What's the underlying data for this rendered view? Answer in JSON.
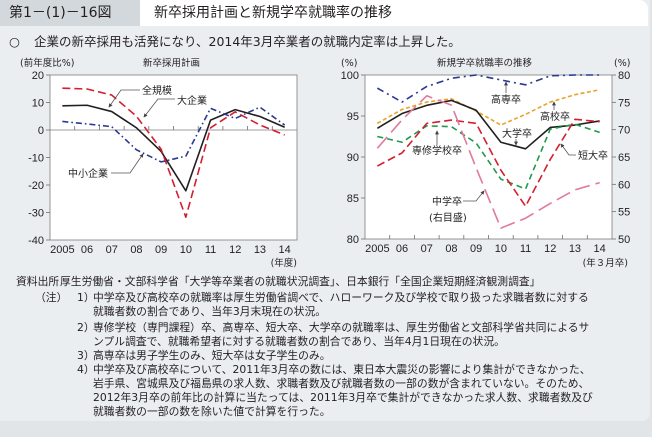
{
  "header": {
    "figure_number": "第1－(1)－16図",
    "title": "新卒採用計画と新規学卒就職率の推移"
  },
  "summary": {
    "bullet": "○",
    "text": "企業の新卒採用も活発になり、2014年3月卒業者の就職内定率は上昇した。"
  },
  "chart_data": [
    {
      "type": "line",
      "title": "新卒採用計画",
      "ylabel": "(前年度比%)",
      "xlabel": "(年度)",
      "categories": [
        "2005",
        "06",
        "07",
        "08",
        "09",
        "10",
        "11",
        "12",
        "13",
        "14"
      ],
      "ylim": [
        -40,
        20
      ],
      "yticks": [
        20,
        10,
        0,
        -10,
        -20,
        -30,
        -40
      ],
      "grid": false,
      "series": [
        {
          "name": "全規模",
          "color": "#231f20",
          "values": [
            8.8,
            9.0,
            6.7,
            0.8,
            -7.8,
            -22.1,
            3.6,
            7.4,
            4.9,
            1.0
          ]
        },
        {
          "name": "大企業",
          "color": "#d31f2e",
          "values": [
            15.2,
            14.9,
            12.7,
            5.0,
            -7.0,
            -31.7,
            0.8,
            6.6,
            1.8,
            -1.8
          ]
        },
        {
          "name": "中小企業",
          "color": "#2b3990",
          "values": [
            3.1,
            2.2,
            1.2,
            -7.2,
            -11.6,
            -9.5,
            7.9,
            4.2,
            8.3,
            1.8
          ]
        }
      ]
    },
    {
      "type": "line",
      "title": "新規学卒就職率の推移",
      "ylabel": "(%)",
      "y2label": "(%)",
      "xlabel": "(年３月卒)",
      "categories": [
        "2005",
        "06",
        "07",
        "08",
        "09",
        "10",
        "11",
        "12",
        "13",
        "14"
      ],
      "ylim": [
        80,
        100
      ],
      "yticks": [
        100,
        95,
        90,
        85,
        80
      ],
      "y2lim": [
        50,
        80
      ],
      "y2ticks": [
        80,
        75,
        70,
        65,
        60,
        55,
        50
      ],
      "grid": false,
      "series": [
        {
          "name": "高専卒",
          "color": "#2b3990",
          "right_axis": false,
          "values": [
            98.4,
            96.7,
            98.6,
            99.6,
            100.0,
            99.4,
            98.8,
            99.9,
            100.0,
            100.0
          ]
        },
        {
          "name": "高校卒",
          "color": "#e8a328",
          "right_axis": false,
          "values": [
            94.1,
            95.8,
            96.7,
            97.1,
            95.6,
            93.9,
            95.2,
            96.7,
            97.6,
            98.2
          ]
        },
        {
          "name": "大学卒",
          "color": "#231f20",
          "right_axis": false,
          "values": [
            93.5,
            95.3,
            96.3,
            96.9,
            95.7,
            91.8,
            91.0,
            93.6,
            93.9,
            94.4
          ]
        },
        {
          "name": "専修学校卒",
          "color": "#1e9a4c",
          "right_axis": false,
          "values": [
            92.5,
            91.8,
            93.8,
            93.7,
            91.7,
            87.3,
            86.1,
            93.4,
            94.0,
            93.0
          ]
        },
        {
          "name": "短大卒",
          "color": "#d31f2e",
          "right_axis": false,
          "values": [
            88.9,
            90.5,
            94.1,
            94.5,
            94.1,
            88.4,
            84.0,
            89.7,
            94.6,
            94.3
          ]
        },
        {
          "name": "中学卒",
          "axis_note": "(右目盛)",
          "color": "#e07a9b",
          "right_axis": true,
          "values": [
            66.6,
            71.8,
            76.2,
            74.5,
            63.0,
            52.0,
            53.8,
            56.5,
            59.0,
            60.3
          ]
        }
      ]
    }
  ],
  "notes": {
    "source_label": "資料出所",
    "source_text": "厚生労働省・文部科学省「大学等卒業者の就職状況調査」、日本銀行「全国企業短期経済観測調査」",
    "note_label": "（注）",
    "items": [
      {
        "num": "1）",
        "lines": [
          "中学卒及び高校卒の就職率は厚生労働省調べで、ハローワーク及び学校で取り扱った求職者数に対する",
          "就職者数の割合であり、当年3月末現在の状況。"
        ]
      },
      {
        "num": "2）",
        "lines": [
          "専修学校（専門課程）卒、高専卒、短大卒、大学卒の就職率は、厚生労働省と文部科学省共同によるサ",
          "ンプル調査で、就職希望者に対する就職者数の割合であり、当年4月1日現在の状況。"
        ]
      },
      {
        "num": "3）",
        "lines": [
          "高専卒は男子学生のみ、短大卒は女子学生のみ。"
        ]
      },
      {
        "num": "4）",
        "lines": [
          "中学卒及び高校卒について、2011年3月卒の数には、東日本大震災の影響により集計ができなかった、",
          "岩手県、宮城県及び福島県の求人数、求職者数及び就職者数の一部の数が含まれていない。そのため、",
          "2012年3月卒の前年比の計算に当たっては、2011年3月卒で集計ができなかった求人数、求職者数及び",
          "就職者数の一部の数を除いた値で計算を行った。"
        ]
      }
    ]
  }
}
